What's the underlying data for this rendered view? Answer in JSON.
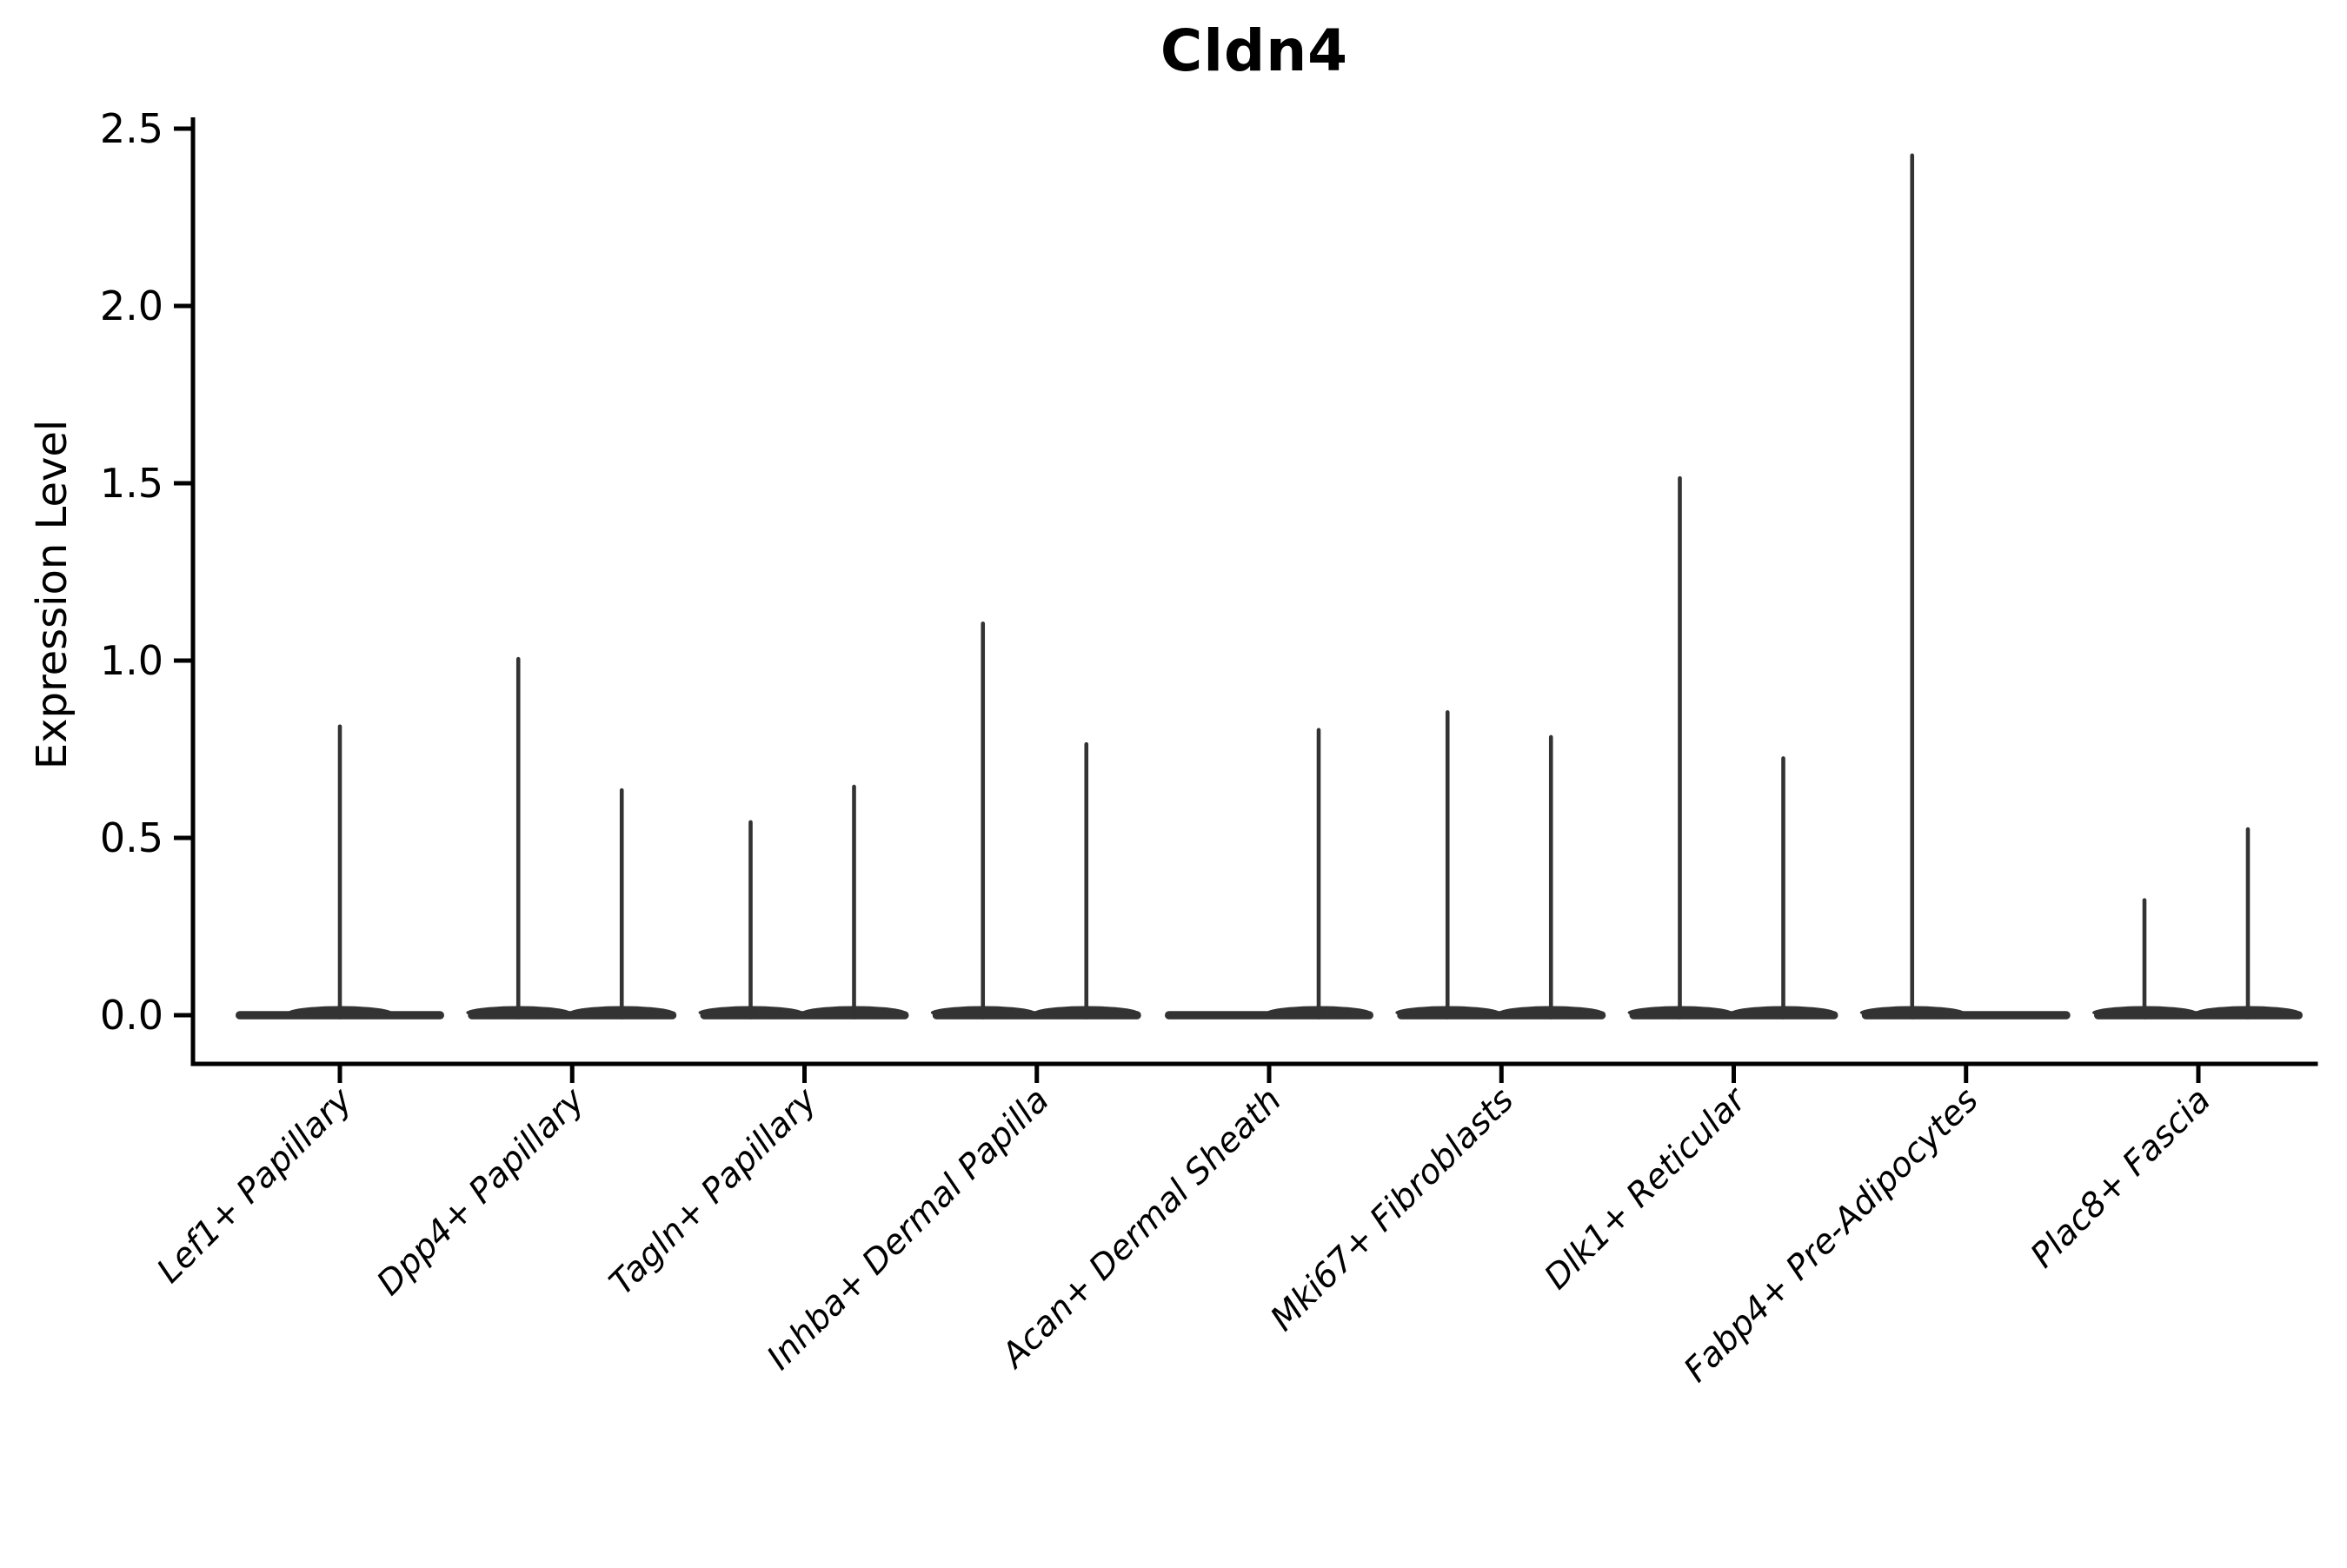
{
  "figure": {
    "background_color": "#ffffff",
    "axis_color": "#000000",
    "violin_color": "#333333"
  },
  "chart_data": {
    "type": "violin",
    "title": "Cldn4",
    "xlabel": "",
    "ylabel": "Expression Level",
    "ylim": [
      0,
      2.5
    ],
    "yticks": [
      "0.0",
      "0.5",
      "1.0",
      "1.5",
      "2.0",
      "2.5"
    ],
    "grid": false,
    "legend": false,
    "categories": [
      "Lef1+ Papillary",
      "Dpp4+ Papillary",
      "Tagln+ Papillary",
      "Inhba+ Dermal Papilla",
      "Acan+ Dermal Sheath",
      "Mki67+ Fibroblasts",
      "Dlk1+ Reticular",
      "Fabp4+ Pre-Adipocytes",
      "Plac8+ Fascia"
    ],
    "violins": [
      {
        "category": "Lef1+ Papillary",
        "spikes": [
          {
            "slot": "center",
            "max": 0.82
          }
        ]
      },
      {
        "category": "Dpp4+ Papillary",
        "spikes": [
          {
            "slot": "left",
            "max": 1.01
          },
          {
            "slot": "right",
            "max": 0.64
          }
        ]
      },
      {
        "category": "Tagln+ Papillary",
        "spikes": [
          {
            "slot": "left",
            "max": 0.55
          },
          {
            "slot": "right",
            "max": 0.65
          }
        ]
      },
      {
        "category": "Inhba+ Dermal Papilla",
        "spikes": [
          {
            "slot": "left",
            "max": 1.11
          },
          {
            "slot": "right",
            "max": 0.77
          }
        ]
      },
      {
        "category": "Acan+ Dermal Sheath",
        "spikes": [
          {
            "slot": "right",
            "max": 0.81
          }
        ]
      },
      {
        "category": "Mki67+ Fibroblasts",
        "spikes": [
          {
            "slot": "left",
            "max": 0.86
          },
          {
            "slot": "right",
            "max": 0.79
          }
        ]
      },
      {
        "category": "Dlk1+ Reticular",
        "spikes": [
          {
            "slot": "left",
            "max": 1.52
          },
          {
            "slot": "right",
            "max": 0.73
          }
        ]
      },
      {
        "category": "Fabp4+ Pre-Adipocytes",
        "spikes": [
          {
            "slot": "left",
            "max": 2.43
          }
        ]
      },
      {
        "category": "Plac8+ Fascia",
        "spikes": [
          {
            "slot": "left",
            "max": 0.33
          },
          {
            "slot": "right",
            "max": 0.53
          }
        ]
      }
    ]
  }
}
